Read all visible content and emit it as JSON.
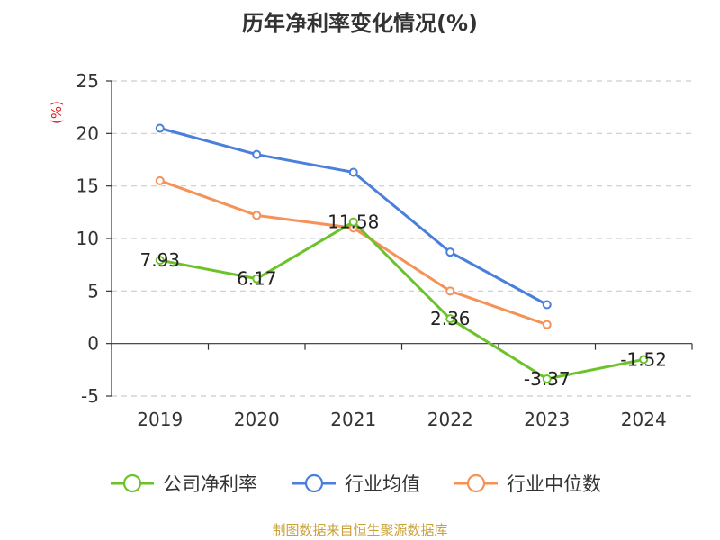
{
  "chart_data": {
    "type": "line",
    "title": "历年净利率变化情况(%)",
    "ylabel": "(%)",
    "xlabel": "",
    "categories": [
      "2019",
      "2020",
      "2021",
      "2022",
      "2023",
      "2024"
    ],
    "ylim": [
      -5,
      25
    ],
    "yticks": [
      -5,
      0,
      5,
      10,
      15,
      20,
      25
    ],
    "grid": true,
    "legend_position": "bottom",
    "series": [
      {
        "name": "公司净利率",
        "color": "#6bc22a",
        "values": [
          7.93,
          6.17,
          11.58,
          2.36,
          -3.37,
          -1.52
        ],
        "labels": [
          "7.93",
          "6.17",
          "11.58",
          "2.36",
          "-3.37",
          "-1.52"
        ]
      },
      {
        "name": "行业均值",
        "color": "#4a7fdc",
        "values": [
          20.5,
          18.0,
          16.3,
          8.7,
          3.7,
          null
        ]
      },
      {
        "name": "行业中位数",
        "color": "#f59258",
        "values": [
          15.5,
          12.2,
          11.0,
          5.0,
          1.8,
          null
        ]
      }
    ]
  },
  "source": "制图数据来自恒生聚源数据库"
}
